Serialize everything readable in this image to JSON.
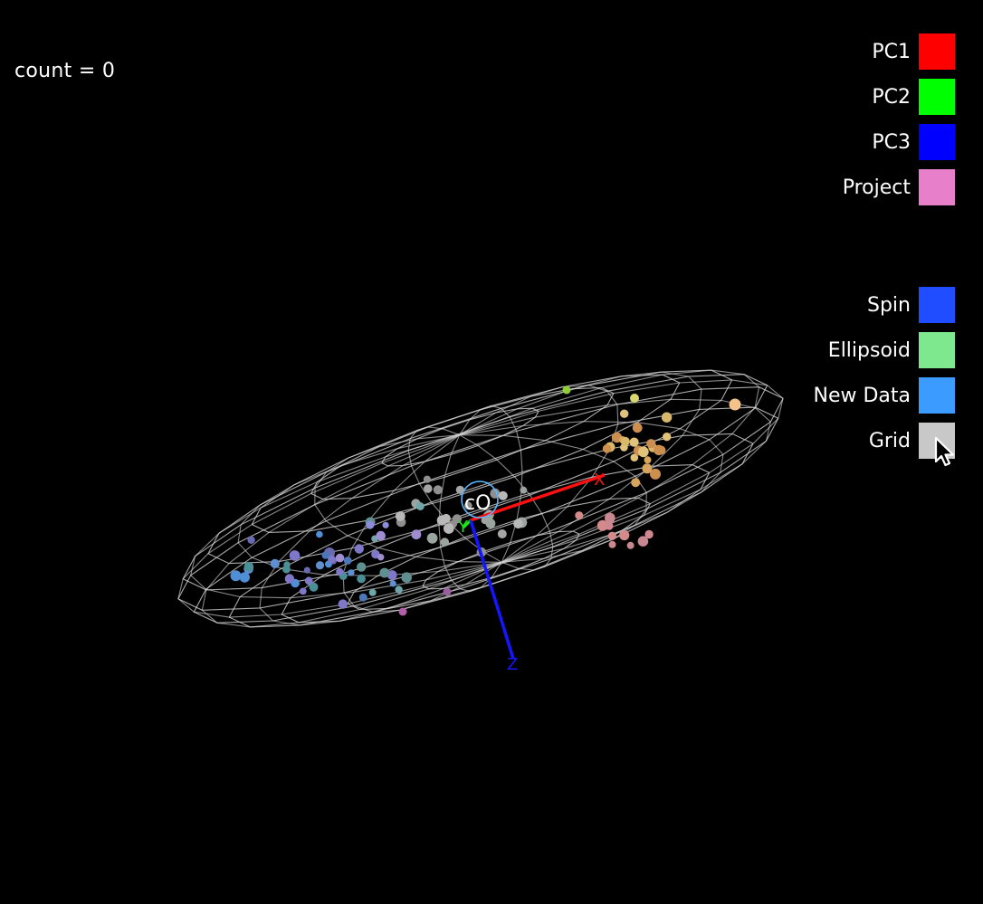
{
  "status": {
    "count_text": "count = 0"
  },
  "axes_legend": [
    {
      "label": "PC1",
      "color": "#ff0000"
    },
    {
      "label": "PC2",
      "color": "#00ff00"
    },
    {
      "label": "PC3",
      "color": "#0000ff"
    },
    {
      "label": "Project",
      "color": "#e87fca"
    }
  ],
  "toggles": [
    {
      "label": "Spin",
      "color": "#1f4dff"
    },
    {
      "label": "Ellipsoid",
      "color": "#7ee88e"
    },
    {
      "label": "New Data",
      "color": "#3b9bff"
    },
    {
      "label": "Grid",
      "color": "#c8c8c8"
    }
  ],
  "scene": {
    "origin_label": "cO",
    "axis_labels": {
      "x": "X",
      "y": "Y",
      "z": "Z"
    },
    "axis_colors": {
      "x": "#ff1010",
      "y": "#19e819",
      "z": "#1515ff"
    },
    "wireframe_color": "#d8d8d8",
    "origin_ring_color": "#5ab7ff"
  }
}
